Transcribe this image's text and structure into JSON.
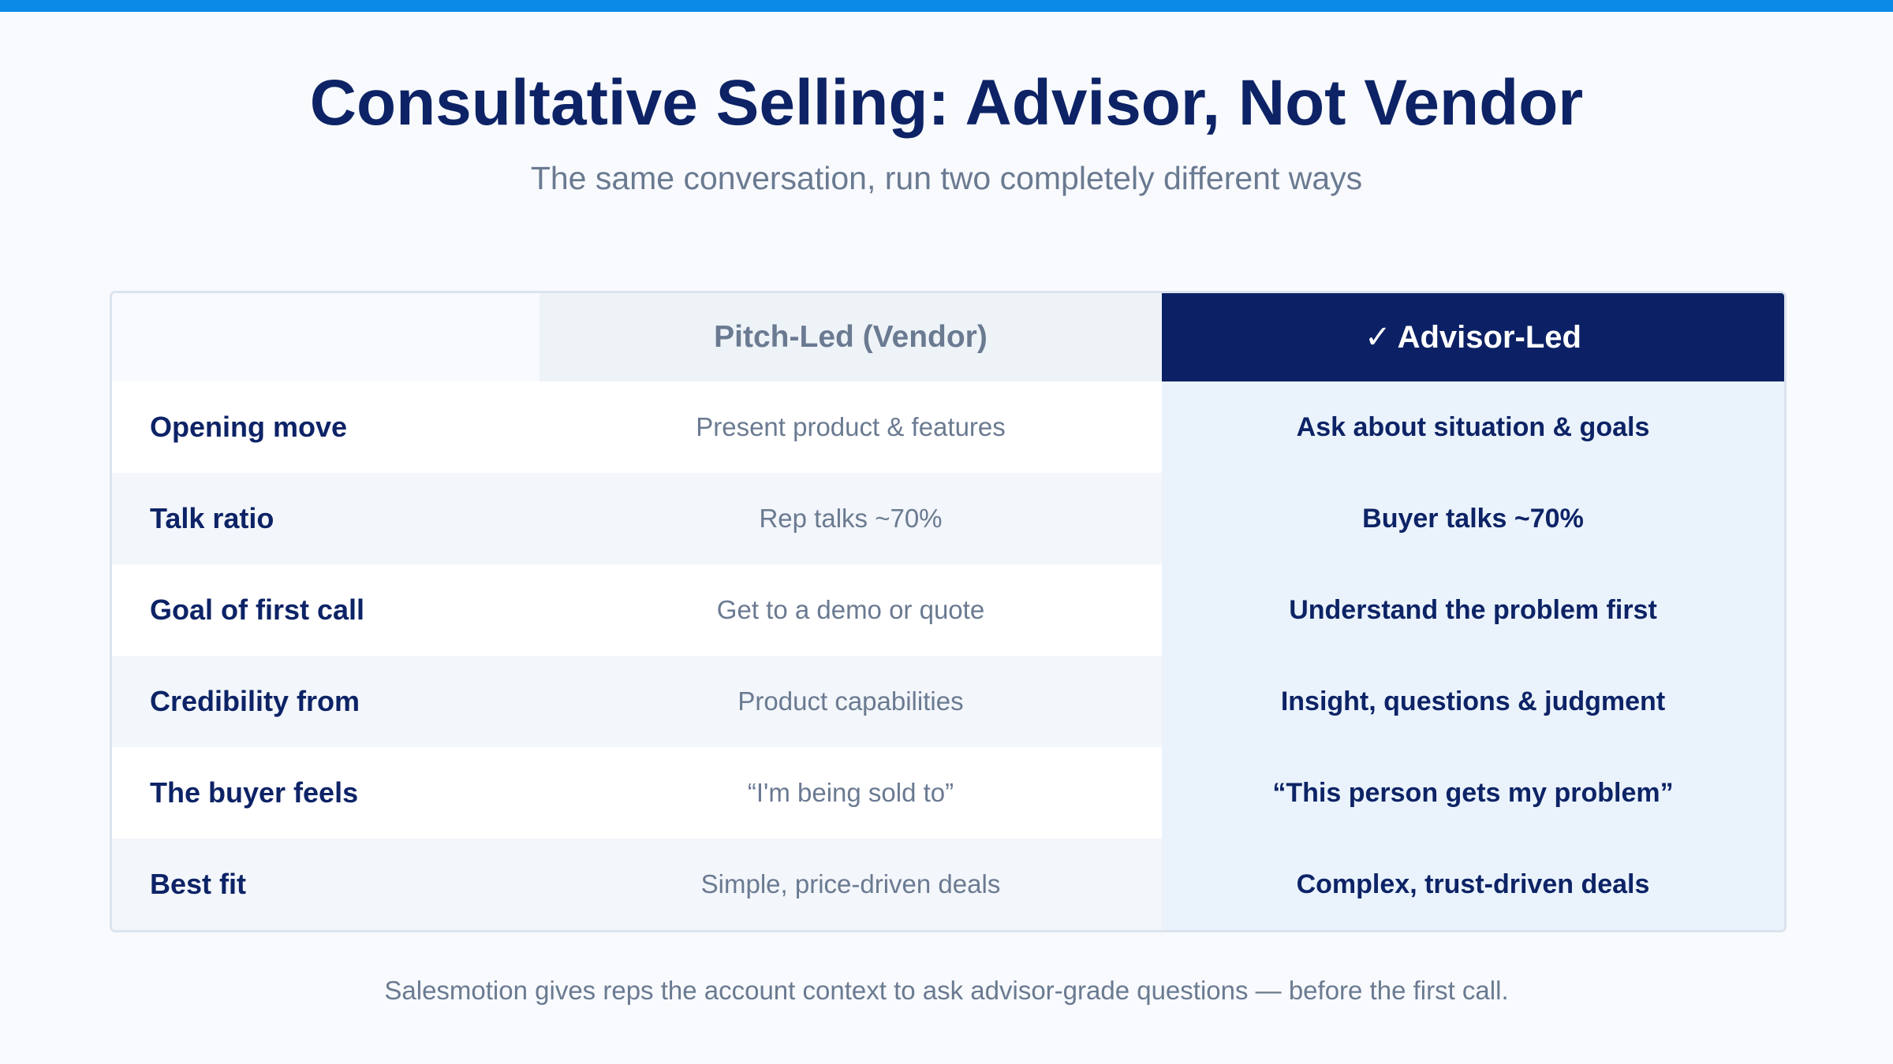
{
  "colors": {
    "accent_bar": "#0b8ae6",
    "navy": "#0d2366",
    "muted_text": "#6a7a91",
    "advisor_column_bg": "#eaf3fc",
    "advisor_header_bg": "#0c2165",
    "vendor_header_bg": "#eef3f8",
    "alt_row_bg": "#f3f6fa"
  },
  "header": {
    "title": "Consultative Selling: Advisor, Not Vendor",
    "subtitle": "The same conversation, run two completely different ways"
  },
  "table": {
    "columns": {
      "vendor": "Pitch-Led (Vendor)",
      "advisor_check": "✓",
      "advisor": "Advisor-Led"
    },
    "rows": [
      {
        "label": "Opening move",
        "vendor": "Present product & features",
        "advisor": "Ask about situation & goals"
      },
      {
        "label": "Talk ratio",
        "vendor": "Rep talks ~70%",
        "advisor": "Buyer talks ~70%"
      },
      {
        "label": "Goal of first call",
        "vendor": "Get to a demo or quote",
        "advisor": "Understand the problem first"
      },
      {
        "label": "Credibility from",
        "vendor": "Product capabilities",
        "advisor": "Insight, questions & judgment"
      },
      {
        "label": "The buyer feels",
        "vendor": "“I'm being sold to”",
        "advisor": "“This person gets my problem”"
      },
      {
        "label": "Best fit",
        "vendor": "Simple, price-driven deals",
        "advisor": "Complex, trust-driven deals"
      }
    ]
  },
  "footer": {
    "text": "Salesmotion gives reps the account context to ask advisor-grade questions — before the first call."
  }
}
